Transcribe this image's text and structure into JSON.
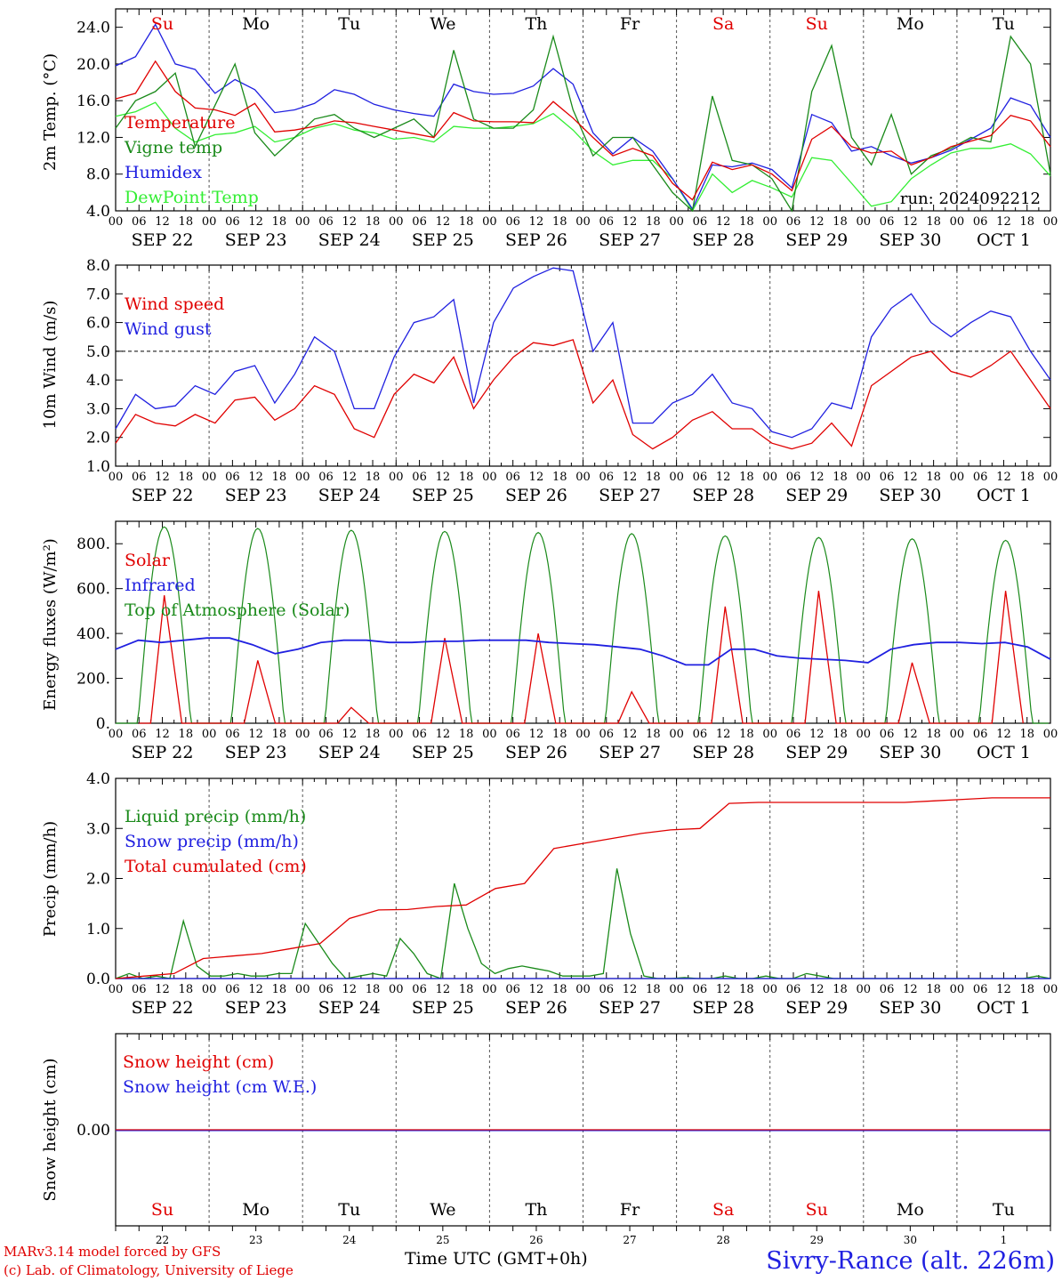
{
  "chart_data": [
    {
      "type": "line",
      "ylabel": "2m Temp. (°C)",
      "ylim": [
        4.0,
        26.0
      ],
      "yticks": [
        "4.0",
        "8.0",
        "12.0",
        "16.0",
        "20.0",
        "24.0"
      ],
      "annotation": "run: 2024092212",
      "x_start": "SEP 22 00 UTC",
      "x_step_hours": 6,
      "series": [
        {
          "name": "Temperature",
          "color": "#e00000",
          "values": [
            16.2,
            16.8,
            20.3,
            17.0,
            15.2,
            15.0,
            14.4,
            15.7,
            12.6,
            12.8,
            13.2,
            13.8,
            13.6,
            13.2,
            12.8,
            12.4,
            12.0,
            14.7,
            13.8,
            13.7,
            13.7,
            13.6,
            15.9,
            14.1,
            12.0,
            10.0,
            10.8,
            10.0,
            7.0,
            5.2,
            9.3,
            8.5,
            9.0,
            8.0,
            6.2,
            11.8,
            13.2,
            11.0,
            10.3,
            10.5,
            9.0,
            9.8,
            11.0,
            11.6,
            12.2,
            14.4,
            13.8,
            11.0
          ]
        },
        {
          "name": "Vigne temp",
          "color": "#1a8a1a",
          "values": [
            13.0,
            16.0,
            17.0,
            19.0,
            11.0,
            15.5,
            20.0,
            12.5,
            10.0,
            12.0,
            14.0,
            14.5,
            13.0,
            12.0,
            13.0,
            14.0,
            12.0,
            21.5,
            14.0,
            13.0,
            13.0,
            15.0,
            23.0,
            15.0,
            10.0,
            12.0,
            12.0,
            9.0,
            6.0,
            3.5,
            16.5,
            9.5,
            9.0,
            7.5,
            4.0,
            17.0,
            22.0,
            12.0,
            9.0,
            14.5,
            8.0,
            10.0,
            10.8,
            12.0,
            11.5,
            23.0,
            20.0,
            8.0
          ]
        },
        {
          "name": "Humidex",
          "color": "#2020e0",
          "values": [
            19.8,
            20.8,
            24.3,
            20.0,
            19.4,
            16.8,
            18.3,
            17.2,
            14.7,
            15.0,
            15.7,
            17.2,
            16.7,
            15.6,
            15.0,
            14.6,
            14.3,
            17.8,
            17.0,
            16.7,
            16.8,
            17.6,
            19.5,
            17.8,
            12.5,
            10.2,
            12.0,
            10.5,
            7.5,
            4.2,
            9.0,
            8.8,
            9.2,
            8.5,
            6.5,
            14.5,
            13.6,
            10.5,
            11.0,
            10.0,
            9.2,
            9.8,
            10.6,
            11.8,
            13.0,
            16.3,
            15.5,
            12.0
          ]
        },
        {
          "name": "DewPoint Temp",
          "color": "#33ee33",
          "values": [
            14.3,
            14.8,
            15.8,
            13.0,
            11.5,
            12.3,
            12.5,
            13.2,
            11.5,
            12.0,
            13.0,
            13.5,
            12.8,
            12.5,
            11.8,
            12.0,
            11.5,
            13.2,
            13.0,
            13.0,
            13.2,
            13.5,
            14.6,
            12.8,
            10.5,
            9.0,
            9.5,
            9.5,
            7.5,
            4.0,
            8.0,
            6.0,
            7.3,
            6.5,
            5.5,
            9.8,
            9.5,
            7.0,
            4.5,
            5.0,
            7.5,
            9.0,
            10.3,
            10.8,
            10.8,
            11.3,
            10.2,
            7.8
          ]
        }
      ]
    },
    {
      "type": "line",
      "ylabel": "10m Wind (m/s)",
      "ylim": [
        1.0,
        8.0
      ],
      "yticks": [
        "1.0",
        "2.0",
        "3.0",
        "4.0",
        "5.0",
        "6.0",
        "7.0",
        "8.0"
      ],
      "reference_line": 5.0,
      "x_start": "SEP 22 00 UTC",
      "x_step_hours": 6,
      "series": [
        {
          "name": "Wind speed",
          "color": "#e00000",
          "values": [
            1.8,
            2.8,
            2.5,
            2.4,
            2.8,
            2.5,
            3.3,
            3.4,
            2.6,
            3.0,
            3.8,
            3.5,
            2.3,
            2.0,
            3.5,
            4.2,
            3.9,
            4.8,
            3.0,
            4.0,
            4.8,
            5.3,
            5.2,
            5.4,
            3.2,
            4.0,
            2.1,
            1.6,
            2.0,
            2.6,
            2.9,
            2.3,
            2.3,
            1.8,
            1.6,
            1.8,
            2.5,
            1.7,
            3.8,
            4.3,
            4.8,
            5.0,
            4.3,
            4.1,
            4.5,
            5.0,
            4.0,
            3.0
          ]
        },
        {
          "name": "Wind gust",
          "color": "#2020e0",
          "values": [
            2.3,
            3.5,
            3.0,
            3.1,
            3.8,
            3.5,
            4.3,
            4.5,
            3.2,
            4.2,
            5.5,
            5.0,
            3.0,
            3.0,
            4.8,
            6.0,
            6.2,
            6.8,
            3.2,
            6.0,
            7.2,
            7.6,
            7.9,
            7.8,
            5.0,
            6.0,
            2.5,
            2.5,
            3.2,
            3.5,
            4.2,
            3.2,
            3.0,
            2.2,
            2.0,
            2.3,
            3.2,
            3.0,
            5.5,
            6.5,
            7.0,
            6.0,
            5.5,
            6.0,
            6.4,
            6.2,
            5.0,
            4.0
          ]
        }
      ]
    },
    {
      "type": "line",
      "ylabel": "Energy fluxes (W/m²)",
      "ylim": [
        0,
        900
      ],
      "yticks": [
        "0.",
        "200.",
        "400.",
        "600.",
        "800."
      ],
      "x_start": "SEP 22 00 UTC",
      "x_step_hours": 6,
      "series": [
        {
          "name": "Solar",
          "color": "#e00000",
          "values": [
            0,
            0,
            570,
            0,
            0,
            0,
            280,
            0,
            0,
            0,
            70,
            0,
            0,
            0,
            380,
            0,
            0,
            0,
            400,
            0,
            0,
            0,
            140,
            0,
            0,
            0,
            520,
            0,
            0,
            0,
            590,
            0,
            0,
            0,
            270,
            0,
            0,
            0,
            590,
            0
          ]
        },
        {
          "name": "Infrared",
          "color": "#2020e0",
          "values": [
            330,
            370,
            360,
            370,
            380,
            380,
            350,
            310,
            330,
            360,
            370,
            370,
            360,
            360,
            365,
            365,
            370,
            370,
            370,
            360,
            355,
            350,
            340,
            330,
            300,
            260,
            260,
            330,
            330,
            300,
            290,
            285,
            280,
            270,
            330,
            350,
            360,
            360,
            355,
            360,
            340,
            285
          ]
        },
        {
          "name": "Top of Atmosphere (Solar)",
          "color": "#1a8a1a",
          "peaks": [
            875,
            868,
            860,
            855,
            850,
            845,
            835,
            828,
            822,
            815
          ]
        }
      ]
    },
    {
      "type": "line",
      "ylabel": "Precip (mm/h)",
      "ylim": [
        0.0,
        4.0
      ],
      "yticks": [
        "0.0",
        "1.0",
        "2.0",
        "3.0",
        "4.0"
      ],
      "x_start": "SEP 22 00 UTC",
      "x_step_hours": 6,
      "series": [
        {
          "name": "Liquid precip (mm/h)",
          "color": "#1a8a1a",
          "values": [
            0.0,
            0.1,
            0.0,
            0.05,
            0.0,
            1.15,
            0.25,
            0.05,
            0.05,
            0.1,
            0.05,
            0.05,
            0.1,
            0.1,
            1.1,
            0.7,
            0.3,
            0.0,
            0.05,
            0.1,
            0.05,
            0.8,
            0.5,
            0.1,
            0.0,
            1.9,
            1.0,
            0.3,
            0.1,
            0.2,
            0.25,
            0.2,
            0.15,
            0.05,
            0.05,
            0.05,
            0.1,
            2.2,
            0.9,
            0.05,
            0.0,
            0.0,
            0.02,
            0.0,
            0.0,
            0.05,
            0.0,
            0.0,
            0.05,
            0.0,
            0.0,
            0.1,
            0.05,
            0.0,
            0.0,
            0.0,
            0.0,
            0.0,
            0.0,
            0.0,
            0.0,
            0.0,
            0.0,
            0.0,
            0.0,
            0.0,
            0.0,
            0.0,
            0.05,
            0.0
          ]
        },
        {
          "name": "Snow precip (mm/h)",
          "color": "#2020e0",
          "values": [
            0.0,
            0.0
          ]
        },
        {
          "name": "Total cumulated (cm)",
          "color": "#e00000",
          "values": [
            0.0,
            0.05,
            0.1,
            0.4,
            0.45,
            0.5,
            0.6,
            0.7,
            1.2,
            1.37,
            1.38,
            1.44,
            1.47,
            1.8,
            1.9,
            2.6,
            2.7,
            2.8,
            2.9,
            2.97,
            3.0,
            3.5,
            3.52,
            3.52,
            3.52,
            3.52,
            3.52,
            3.52,
            3.55,
            3.58,
            3.61,
            3.61,
            3.61
          ]
        }
      ]
    },
    {
      "type": "line",
      "ylabel": "Snow height (cm)",
      "yticks": [
        "0.00"
      ],
      "x_start": "SEP 22 00 UTC",
      "x_step_hours": 6,
      "series": [
        {
          "name": "Snow height (cm)",
          "color": "#e00000",
          "values": [
            0.0,
            0.0
          ]
        },
        {
          "name": "Snow height (cm W.E.)",
          "color": "#2020e0",
          "values": [
            0.0,
            0.0
          ]
        }
      ]
    }
  ],
  "days": [
    {
      "dow": "Su",
      "date": "SEP 22",
      "num": "22",
      "weekend": true
    },
    {
      "dow": "Mo",
      "date": "SEP 23",
      "num": "23",
      "weekend": false
    },
    {
      "dow": "Tu",
      "date": "SEP 24",
      "num": "24",
      "weekend": false
    },
    {
      "dow": "We",
      "date": "SEP 25",
      "num": "25",
      "weekend": false
    },
    {
      "dow": "Th",
      "date": "SEP 26",
      "num": "26",
      "weekend": false
    },
    {
      "dow": "Fr",
      "date": "SEP 27",
      "num": "27",
      "weekend": false
    },
    {
      "dow": "Sa",
      "date": "SEP 28",
      "num": "28",
      "weekend": true
    },
    {
      "dow": "Su",
      "date": "SEP 29",
      "num": "29",
      "weekend": true
    },
    {
      "dow": "Mo",
      "date": "SEP 30",
      "num": "30",
      "weekend": false
    },
    {
      "dow": "Tu",
      "date": "OCT 1",
      "num": "1",
      "weekend": false
    }
  ],
  "hour_ticks": [
    "00",
    "06",
    "12",
    "18"
  ],
  "colors": {
    "weekend": "#e00000",
    "weekday": "#000000"
  },
  "footer": {
    "credit_line1": "MARv3.14 model forced by GFS",
    "credit_line2": "(c) Lab. of Climatology, University of Liege",
    "xlabel": "Time UTC (GMT+0h)",
    "station": "Sivry-Rance (alt. 226m)"
  }
}
